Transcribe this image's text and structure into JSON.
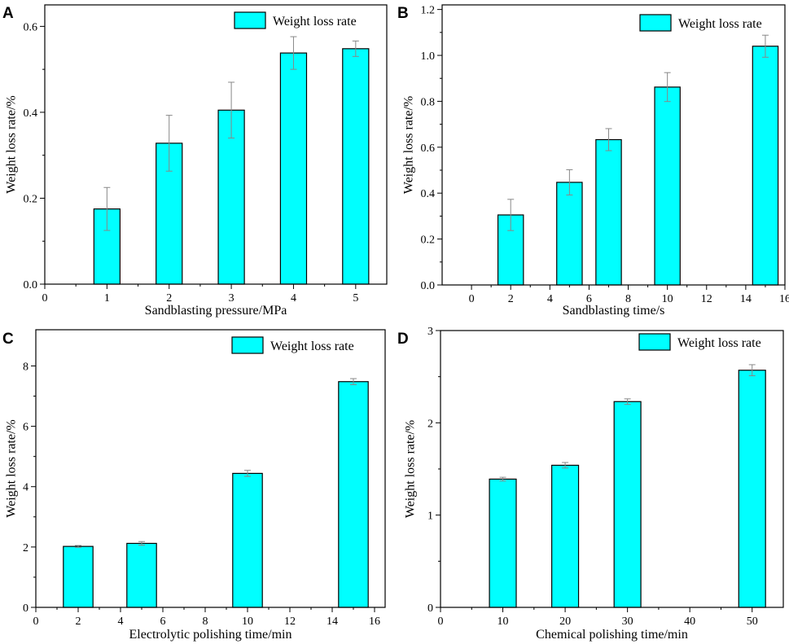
{
  "colors": {
    "bar_fill": "#00FFFF",
    "bar_stroke": "#000000",
    "error_bar": "#888888"
  },
  "chart_data": [
    {
      "panel": "A",
      "type": "bar",
      "legend": "Weight loss rate",
      "xlabel": "Sandblasting pressure/MPa",
      "ylabel": "Weight loss rate/%",
      "xlim": [
        0,
        5.5
      ],
      "ylim": [
        0,
        0.65
      ],
      "xticks": [
        0,
        1,
        2,
        3,
        4,
        5
      ],
      "yticks": [
        0.0,
        0.2,
        0.4,
        0.6
      ],
      "ytick_labels": [
        "0.0",
        "0.2",
        "0.4",
        "0.6"
      ],
      "bar_width": 0.42,
      "x": [
        1,
        2,
        3,
        4,
        5
      ],
      "values": [
        0.175,
        0.328,
        0.405,
        0.538,
        0.548
      ],
      "errors": [
        0.05,
        0.065,
        0.065,
        0.038,
        0.018
      ]
    },
    {
      "panel": "B",
      "type": "bar",
      "legend": "Weight loss rate",
      "xlabel": "Sandblasting time/s",
      "ylabel": "Weight loss rate/%",
      "xlim": [
        -1.5,
        16
      ],
      "ylim": [
        0,
        1.22
      ],
      "xticks": [
        0,
        2,
        4,
        6,
        8,
        10,
        12,
        14,
        16
      ],
      "yticks": [
        0.0,
        0.2,
        0.4,
        0.6,
        0.8,
        1.0,
        1.2
      ],
      "ytick_labels": [
        "0.0",
        "0.2",
        "0.4",
        "0.6",
        "0.8",
        "1.0",
        "1.2"
      ],
      "bar_width": 1.3,
      "x": [
        2,
        5,
        7,
        10,
        15
      ],
      "values": [
        0.305,
        0.447,
        0.633,
        0.862,
        1.04
      ],
      "errors": [
        0.068,
        0.055,
        0.048,
        0.063,
        0.048
      ]
    },
    {
      "panel": "C",
      "type": "bar",
      "legend": "Weight loss rate",
      "xlabel": "Electrolytic polishing time/min",
      "ylabel": "Weight loss rate/%",
      "xlim": [
        0,
        16.5
      ],
      "ylim": [
        0,
        9.2
      ],
      "xticks": [
        0,
        2,
        4,
        6,
        8,
        10,
        12,
        14,
        16
      ],
      "yticks": [
        0,
        2,
        4,
        6,
        8
      ],
      "ytick_labels": [
        "0",
        "2",
        "4",
        "6",
        "8"
      ],
      "bar_width": 1.4,
      "x": [
        2,
        5,
        10,
        15
      ],
      "values": [
        2.02,
        2.12,
        4.44,
        7.48
      ],
      "errors": [
        0.03,
        0.06,
        0.1,
        0.1
      ]
    },
    {
      "panel": "D",
      "type": "bar",
      "legend": "Weight loss rate",
      "xlabel": "Chemical polishing time/min",
      "ylabel": "Weight loss rate/%",
      "xlim": [
        0,
        55
      ],
      "ylim": [
        0,
        3
      ],
      "xticks": [
        0,
        10,
        20,
        30,
        40,
        50
      ],
      "yticks": [
        0,
        1,
        2,
        3
      ],
      "ytick_labels": [
        "0",
        "1",
        "2",
        "3"
      ],
      "bar_width": 4.3,
      "x": [
        10,
        20,
        30,
        50
      ],
      "values": [
        1.39,
        1.54,
        2.23,
        2.57
      ],
      "errors": [
        0.02,
        0.03,
        0.03,
        0.06
      ]
    }
  ]
}
